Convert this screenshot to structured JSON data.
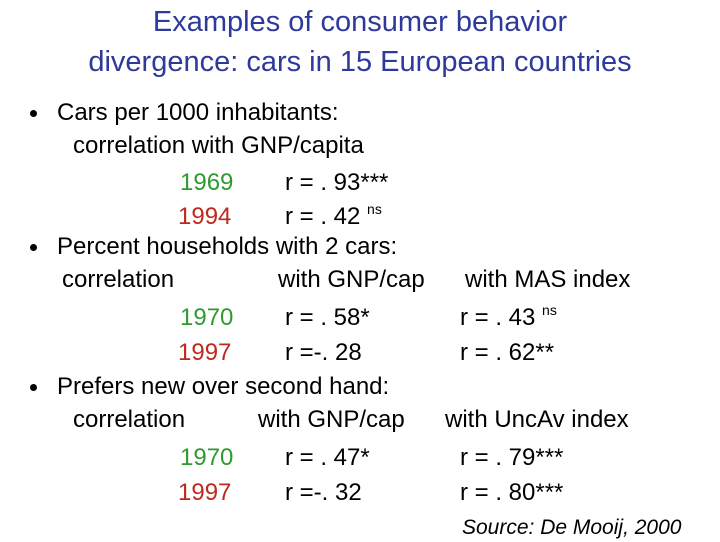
{
  "title": [
    "Examples of consumer behavior",
    "divergence: cars in 15 European countries"
  ],
  "bullets": [
    {
      "text": "Cars per 1000 inhabitants:",
      "header": [
        "correlation with GNP/capita"
      ],
      "rows": [
        {
          "year": "1969",
          "r1": "r = . 93***"
        },
        {
          "year": "1994",
          "r1": "r = . 42",
          "r1_sup": "ns"
        }
      ]
    },
    {
      "text": "Percent households with 2 cars:",
      "header": [
        "correlation",
        "with GNP/cap",
        "with MAS index"
      ],
      "rows": [
        {
          "year": "1970",
          "r1": "r = . 58*",
          "r2": "r = . 43",
          "r2_sup": "ns"
        },
        {
          "year": "1997",
          "r1": "r =-. 28",
          "r2": "r = . 62**"
        }
      ]
    },
    {
      "text": "Prefers new over second hand:",
      "header": [
        "correlation",
        "with GNP/cap",
        "with UncAv index"
      ],
      "rows": [
        {
          "year": "1970",
          "r1": "r = . 47*",
          "r2": "r = . 79***"
        },
        {
          "year": "1997",
          "r1": "r =-. 32",
          "r2": "r = . 80***"
        }
      ]
    }
  ],
  "source": "Source: De Mooij, 2000"
}
